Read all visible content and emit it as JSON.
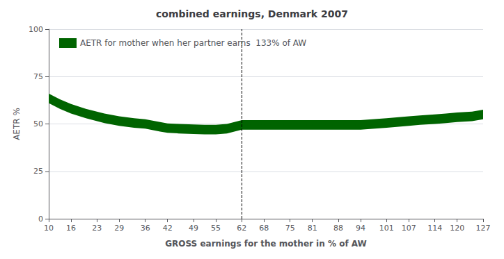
{
  "chart_data": {
    "type": "line",
    "title": "combined earnings, Denmark 2007",
    "xlabel": "GROSS earnings for the mother in % of AW",
    "ylabel": "AETR %",
    "series": [
      {
        "name": "AETR for mother when her partner earns  133% of AW",
        "color": "#006400",
        "x": [
          10,
          13,
          16,
          20,
          25,
          29,
          33,
          36,
          40,
          42,
          45,
          49,
          52,
          55,
          58,
          62,
          65,
          68,
          75,
          81,
          88,
          94,
          101,
          107,
          110,
          114,
          117,
          120,
          124,
          127
        ],
        "values": [
          63.5,
          60.5,
          58.0,
          55.5,
          53.0,
          51.5,
          50.5,
          50.0,
          48.5,
          47.8,
          47.5,
          47.2,
          47.0,
          47.0,
          47.5,
          49.5,
          49.5,
          49.5,
          49.5,
          49.5,
          49.5,
          49.5,
          50.5,
          51.5,
          52.0,
          52.5,
          53.0,
          53.5,
          54.0,
          55.0
        ],
        "band_lower": [
          61.0,
          58.0,
          55.5,
          53.0,
          50.5,
          49.0,
          48.0,
          47.5,
          46.0,
          45.3,
          45.0,
          44.7,
          44.5,
          44.5,
          45.0,
          47.0,
          47.0,
          47.0,
          47.0,
          47.0,
          47.0,
          47.0,
          48.0,
          49.0,
          49.5,
          50.0,
          50.5,
          51.0,
          51.5,
          52.5
        ],
        "band_upper": [
          66.0,
          63.0,
          60.5,
          58.0,
          55.5,
          54.0,
          53.0,
          52.5,
          51.0,
          50.3,
          50.0,
          49.7,
          49.5,
          49.5,
          50.0,
          52.0,
          52.0,
          52.0,
          52.0,
          52.0,
          52.0,
          52.0,
          53.0,
          54.0,
          54.5,
          55.0,
          55.5,
          56.0,
          56.5,
          57.5
        ]
      }
    ],
    "vline_x": 62,
    "xlim": [
      10,
      127
    ],
    "xticks": [
      10,
      16,
      23,
      29,
      36,
      42,
      49,
      55,
      62,
      68,
      75,
      81,
      88,
      94,
      101,
      107,
      114,
      120,
      127
    ],
    "ylim": [
      0,
      100
    ],
    "yticks": [
      0,
      25,
      50,
      75,
      100
    ],
    "grid": true,
    "legend": "upper left"
  }
}
